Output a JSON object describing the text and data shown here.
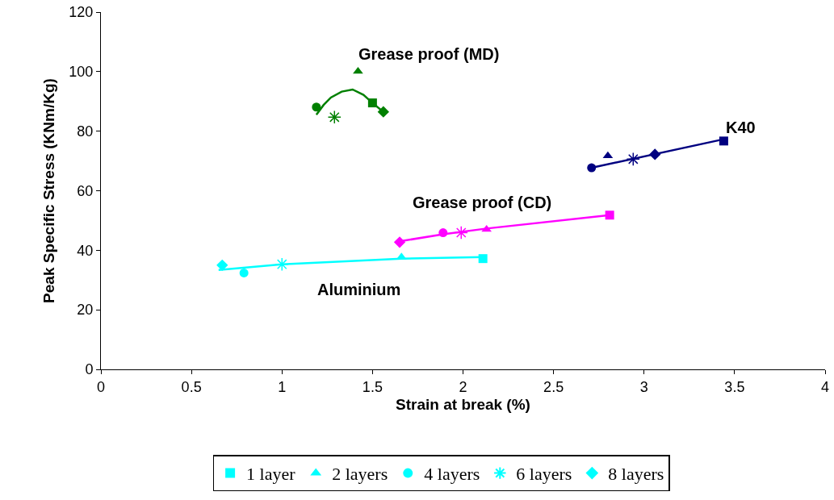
{
  "chart_data": {
    "type": "scatter",
    "xlabel": "Strain at break (%)",
    "ylabel": "Peak Specific Stress (KNm/Kg)",
    "xlim": [
      0,
      4
    ],
    "xticks": [
      0,
      0.5,
      1,
      1.5,
      2,
      2.5,
      3,
      3.5,
      4
    ],
    "ylim": [
      0,
      120
    ],
    "yticks": [
      0,
      20,
      40,
      60,
      80,
      100,
      120
    ],
    "grid": false,
    "legend": "bottom",
    "series": [
      {
        "name": "1 layer",
        "marker": "square",
        "x": [
          2.11,
          2.81,
          1.5,
          3.44
        ],
        "values": [
          37.2,
          51.8,
          89.5,
          76.7
        ],
        "colors": [
          "#00ffff",
          "#ff00ff",
          "#008000",
          "#000080"
        ]
      },
      {
        "name": "2 layers",
        "marker": "triangle",
        "x": [
          1.66,
          2.13,
          1.42,
          2.8
        ],
        "values": [
          37.7,
          47.0,
          100.1,
          71.7
        ],
        "colors": [
          "#00ffff",
          "#ff00ff",
          "#008000",
          "#000080"
        ]
      },
      {
        "name": "4 layers",
        "marker": "circle",
        "x": [
          0.79,
          1.89,
          1.19,
          2.71
        ],
        "values": [
          32.4,
          45.9,
          88.1,
          67.7
        ],
        "colors": [
          "#00ffff",
          "#ff00ff",
          "#008000",
          "#000080"
        ]
      },
      {
        "name": "6 layers",
        "marker": "cross",
        "x": [
          1.0,
          1.99,
          1.29,
          2.94
        ],
        "values": [
          35.3,
          45.9,
          84.7,
          70.6
        ],
        "colors": [
          "#00ffff",
          "#ff00ff",
          "#008000",
          "#000080"
        ]
      },
      {
        "name": "8 layers",
        "marker": "diamond",
        "x": [
          0.67,
          1.65,
          1.56,
          3.06
        ],
        "values": [
          35.0,
          42.7,
          86.5,
          72.2
        ],
        "colors": [
          "#00ffff",
          "#ff00ff",
          "#008000",
          "#000080"
        ]
      },
      {
        "type": "line",
        "color": "#00ffff",
        "x": [
          0.65,
          1.0,
          1.66,
          2.11
        ],
        "values": [
          33.4,
          35.3,
          37.2,
          37.7
        ]
      },
      {
        "type": "line",
        "color": "#ff00ff",
        "x": [
          1.65,
          1.89,
          2.13,
          2.81
        ],
        "values": [
          43.0,
          45.4,
          47.3,
          51.8
        ]
      },
      {
        "type": "line",
        "color": "#008000",
        "x": [
          1.19,
          1.23,
          1.27,
          1.33,
          1.39,
          1.45,
          1.5,
          1.56
        ],
        "values": [
          85.5,
          88.8,
          91.3,
          93.3,
          94.0,
          92.2,
          89.5,
          86.5
        ]
      },
      {
        "type": "line",
        "color": "#000080",
        "x": [
          2.71,
          3.44
        ],
        "values": [
          67.7,
          77.3
        ]
      }
    ],
    "annotations": [
      "Grease proof (MD)",
      "K40",
      "Grease proof (CD)",
      "Aluminium"
    ]
  }
}
